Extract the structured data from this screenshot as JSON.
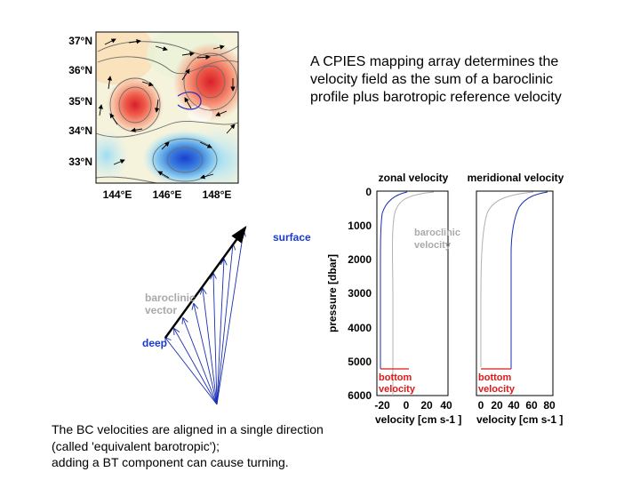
{
  "intro_text": "A CPIES mapping array determines the velocity field as the sum of a baroclinic profile plus barotropic reference velocity",
  "caption_lines": [
    "The BC velocities are aligned in a single direction",
    "(called 'equivalent barotropic');",
    "adding a BT component can cause turning."
  ],
  "map": {
    "lat_labels": [
      "37°N",
      "36°N",
      "35°N",
      "34°N",
      "33°N"
    ],
    "lon_labels": [
      "144°E",
      "146°E",
      "148°E"
    ],
    "colors": {
      "warm": "#e8403a",
      "cold": "#2a5fd6"
    }
  },
  "vector_diagram": {
    "labels": {
      "surface": "surface",
      "baroclinic": "baroclinic vector",
      "deep": "deep"
    },
    "colors": {
      "label": "#1a3ad0",
      "vectors": "#1a2fb5",
      "baroclinic_label": "#a9a9a9"
    }
  },
  "profiles": {
    "y_axis_label": "pressure [dbar]",
    "y_ticks": [
      "0",
      "1000",
      "2000",
      "3000",
      "4000",
      "5000",
      "6000"
    ],
    "zonal": {
      "title": "zonal velocity",
      "x_ticks": [
        "-20",
        "0",
        "20",
        "40"
      ],
      "x_label": "velocity [cm s-1 ]",
      "baroclinic_label": "baroclinic velocity",
      "bottom_label": "bottom velocity"
    },
    "meridional": {
      "title": "meridional velocity",
      "x_ticks": [
        "0",
        "20",
        "40",
        "60",
        "80"
      ],
      "x_label": "velocity [cm s-1 ]",
      "bottom_label": "bottom velocity"
    },
    "colors": {
      "total": "#1a2fb5",
      "baroclinic": "#b0b0b0",
      "bottom": "#e01818"
    }
  }
}
